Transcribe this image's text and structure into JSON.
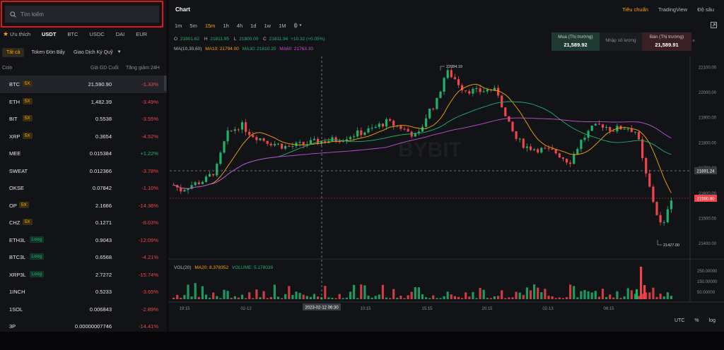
{
  "search": {
    "placeholder": "Tìm kiếm"
  },
  "market_tabs": [
    "Ưu thích",
    "USDT",
    "BTC",
    "USDC",
    "DAI",
    "EUR"
  ],
  "sub_tabs": {
    "all": "Tất cả",
    "leverage": "Token Đòn Bẩy",
    "margin": "Giao Dịch Ký Quỹ"
  },
  "columns": {
    "coin": "Coin",
    "last_price": "Giá GD Cuối",
    "change": "Tăng giảm 24H"
  },
  "coins": [
    {
      "sym": "BTC",
      "badge": "5X",
      "price": "21,590.90",
      "chg": "-1.33%"
    },
    {
      "sym": "ETH",
      "badge": "5X",
      "price": "1,482.39",
      "chg": "-3.49%"
    },
    {
      "sym": "BIT",
      "badge": "5X",
      "price": "0.5538",
      "chg": "-3.55%"
    },
    {
      "sym": "XRP",
      "badge": "5X",
      "price": "0.3654",
      "chg": "-4.52%"
    },
    {
      "sym": "MEE",
      "badge": "",
      "price": "0.015384",
      "chg": "+1.22%"
    },
    {
      "sym": "SWEAT",
      "badge": "",
      "price": "0.012366",
      "chg": "-3.78%"
    },
    {
      "sym": "OKSE",
      "badge": "",
      "price": "0.07842",
      "chg": "-1.10%"
    },
    {
      "sym": "OP",
      "badge": "5X",
      "price": "2.1666",
      "chg": "-14.36%"
    },
    {
      "sym": "CHZ",
      "badge": "5X",
      "price": "0.1271",
      "chg": "-8.03%"
    },
    {
      "sym": "ETH3L",
      "badge": "Long",
      "price": "0.9043",
      "chg": "-12.09%"
    },
    {
      "sym": "BTC3L",
      "badge": "Long",
      "price": "0.6568",
      "chg": "-4.21%"
    },
    {
      "sym": "XRP3L",
      "badge": "Long",
      "price": "2.7272",
      "chg": "-15.74%"
    },
    {
      "sym": "1INCH",
      "badge": "",
      "price": "0.5233",
      "chg": "-3.65%"
    },
    {
      "sym": "1SOL",
      "badge": "",
      "price": "0.006843",
      "chg": "-2.89%"
    },
    {
      "sym": "3P",
      "badge": "",
      "price": "0.00000007746",
      "chg": "-14.41%"
    }
  ],
  "chart": {
    "title": "Chart",
    "views": [
      "Tiêu chuẩn",
      "TradingView",
      "Độ sâu"
    ],
    "intervals": [
      "1m",
      "5m",
      "15m",
      "1h",
      "4h",
      "1d",
      "1w",
      "1M"
    ],
    "active_interval": "15m",
    "ohlc": {
      "o_label": "O",
      "o": "21801.62",
      "h_label": "H",
      "h": "21811.95",
      "l_label": "L",
      "l": "21800.00",
      "c_label": "C",
      "c": "21811.94",
      "change": "+10.32 (+0.05%)"
    },
    "ma": {
      "label": "MA(10,30,60)",
      "ma10": "MA10: 21794.00",
      "ma30": "MA30: 21810.20",
      "ma60": "MA60: 21763.30"
    },
    "order": {
      "buy_label": "Mua (Thị trường)",
      "buy_price": "21,589.92",
      "qty_placeholder": "Nhập số lượng",
      "sell_label": "Bán (Thị trường)",
      "sell_price": "21,589.91",
      "close": "×"
    },
    "watermark": "BYBIT",
    "high_label": "22084.19",
    "low_label": "21427.00",
    "crosshair_price": "21691.24",
    "last_price": "21590.90",
    "crosshair_time": "2023-02-12 06:30",
    "price_ticks": [
      "22100.00",
      "22000.00",
      "21900.00",
      "21800.00",
      "21700.00",
      "21600.00",
      "21500.00",
      "21400.00"
    ],
    "time_ticks": [
      "19:15",
      "02-12",
      "10:15",
      "15:15",
      "20:15",
      "02-13",
      "06:15"
    ],
    "volume": {
      "label": "VOL(20)",
      "ma20": "MA20: 8.378352",
      "value": "VOLUME: 5.178039",
      "ticks": [
        "250.00000",
        "150.00000",
        "50.00000"
      ]
    },
    "footer": [
      "UTC",
      "%",
      "log"
    ]
  },
  "colors": {
    "up": "#20b26c",
    "down": "#ef454a",
    "accent": "#f7a600",
    "ma10": "#f7a600",
    "ma30": "#20b26c",
    "ma60": "#c14fd6"
  },
  "chart_data": {
    "type": "candlestick",
    "ylim": [
      21350,
      22140
    ],
    "ohlc": []
  }
}
